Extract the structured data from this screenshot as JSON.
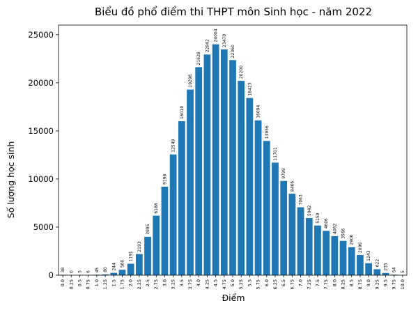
{
  "chart_data": {
    "type": "bar",
    "title": "Biểu đồ phổ điểm thi THPT môn Sinh học - năm 2022",
    "xlabel": "Điểm",
    "ylabel": "Số lượng học sinh",
    "ylim": [
      0,
      26000
    ],
    "yticks": [
      "0",
      "5000",
      "10000",
      "15000",
      "20000",
      "25000"
    ],
    "ytick_values": [
      0,
      5000,
      10000,
      15000,
      20000,
      25000
    ],
    "categories": [
      "0.0",
      "0.25",
      "0.5",
      "0.75",
      "1.0",
      "1.25",
      "1.5",
      "1.75",
      "2.0",
      "2.25",
      "2.5",
      "2.75",
      "3.0",
      "3.25",
      "3.5",
      "3.75",
      "4.0",
      "4.25",
      "4.5",
      "4.75",
      "5.0",
      "5.25",
      "5.5",
      "5.75",
      "6.0",
      "6.25",
      "6.5",
      "6.75",
      "7.0",
      "7.25",
      "7.5",
      "7.75",
      "8.0",
      "8.25",
      "8.5",
      "8.75",
      "9.0",
      "9.25",
      "9.5",
      "9.75",
      "10.0"
    ],
    "values": [
      38,
      0,
      5,
      6,
      45,
      80,
      244,
      560,
      1191,
      2193,
      3995,
      6188,
      9198,
      12549,
      16010,
      19296,
      21628,
      22942,
      24004,
      23470,
      22360,
      20200,
      18423,
      16094,
      13956,
      11701,
      9799,
      8466,
      7063,
      5942,
      5159,
      4606,
      4062,
      3566,
      2906,
      2096,
      1243,
      622,
      235,
      54,
      5
    ],
    "bar_color": "#1f77b4",
    "grid": false,
    "legend": "none"
  }
}
